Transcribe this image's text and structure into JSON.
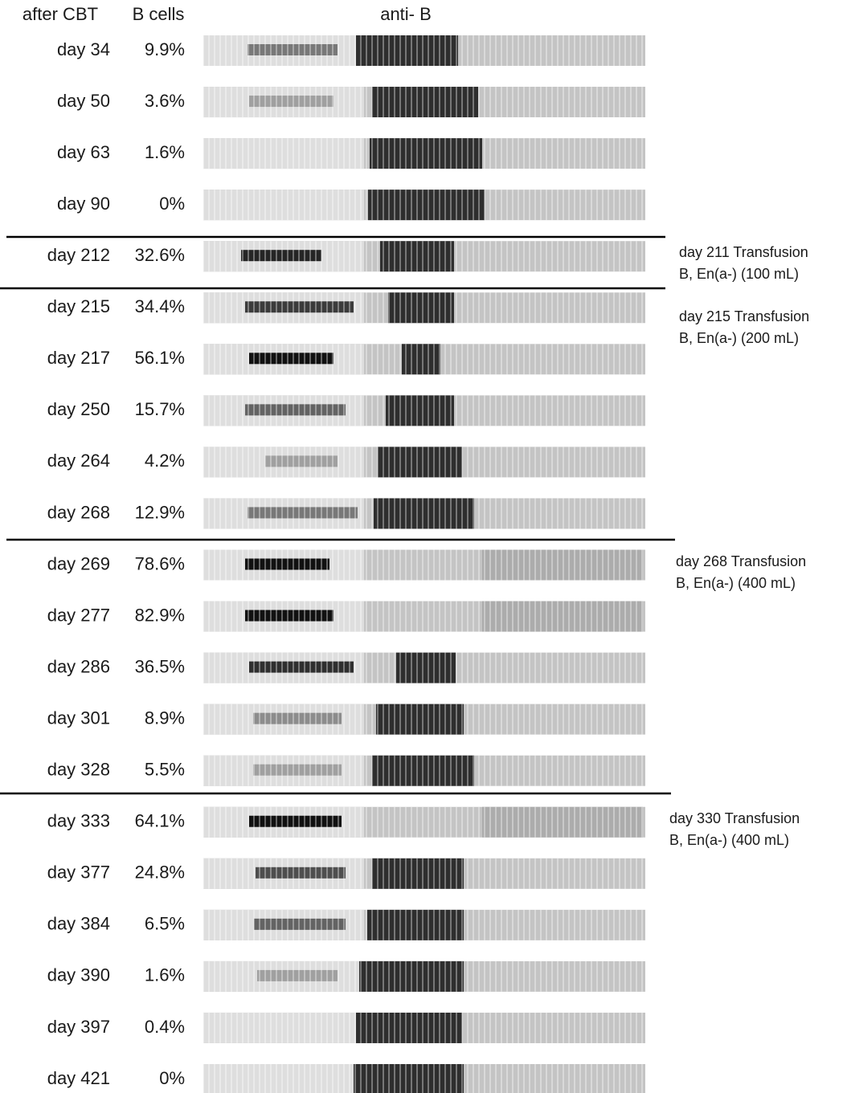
{
  "header": {
    "col1": "after CBT",
    "col2": "B cells",
    "col3": "anti- B"
  },
  "rows": [
    {
      "day": "day 34",
      "bcells": "9.9%"
    },
    {
      "day": "day 50",
      "bcells": "3.6%"
    },
    {
      "day": "day 63",
      "bcells": "1.6%"
    },
    {
      "day": "day 90",
      "bcells": "0%"
    },
    {
      "day": "day 212",
      "bcells": "32.6%"
    },
    {
      "day": "day 215",
      "bcells": "34.4%"
    },
    {
      "day": "day 217",
      "bcells": "56.1%"
    },
    {
      "day": "day 250",
      "bcells": "15.7%"
    },
    {
      "day": "day 264",
      "bcells": "4.2%"
    },
    {
      "day": "day 268",
      "bcells": "12.9%"
    },
    {
      "day": "day 269",
      "bcells": "78.6%"
    },
    {
      "day": "day 277",
      "bcells": "82.9%"
    },
    {
      "day": "day 286",
      "bcells": "36.5%"
    },
    {
      "day": "day 301",
      "bcells": "8.9%"
    },
    {
      "day": "day 328",
      "bcells": "5.5%"
    },
    {
      "day": "day 333",
      "bcells": "64.1%"
    },
    {
      "day": "day 377",
      "bcells": "24.8%"
    },
    {
      "day": "day 384",
      "bcells": "6.5%"
    },
    {
      "day": "day 390",
      "bcells": "1.6%"
    },
    {
      "day": "day 397",
      "bcells": "0.4%"
    },
    {
      "day": "day 421",
      "bcells": "0%"
    }
  ],
  "notes": [
    {
      "line1": "day 211 Transfusion",
      "line2": "B, En(a-) (100 mL)"
    },
    {
      "line1": "day 215 Transfusion",
      "line2": "B, En(a-) (200 mL)"
    },
    {
      "line1": "day 268 Transfusion",
      "line2": "B, En(a-)  (400 mL)"
    },
    {
      "line1": "day 330 Transfusion",
      "line2": "B, En(a-)  (400 mL)"
    }
  ]
}
